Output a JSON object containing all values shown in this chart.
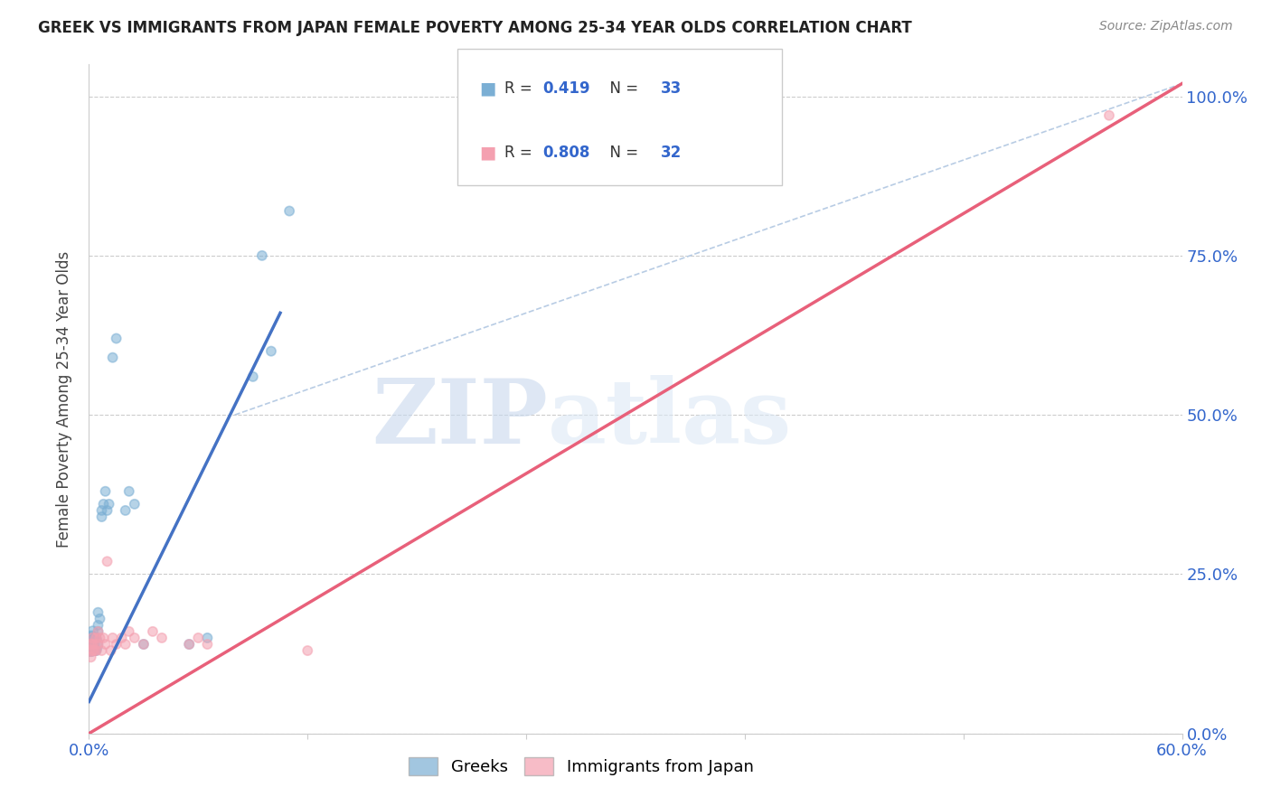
{
  "title": "GREEK VS IMMIGRANTS FROM JAPAN FEMALE POVERTY AMONG 25-34 YEAR OLDS CORRELATION CHART",
  "source": "Source: ZipAtlas.com",
  "ylabel": "Female Poverty Among 25-34 Year Olds",
  "xlim": [
    0.0,
    0.6
  ],
  "ylim": [
    0.0,
    1.05
  ],
  "yticks": [
    0.0,
    0.25,
    0.5,
    0.75,
    1.0
  ],
  "ytick_labels": [
    "0.0%",
    "25.0%",
    "50.0%",
    "75.0%",
    "100.0%"
  ],
  "xticks": [
    0.0,
    0.12,
    0.24,
    0.36,
    0.48,
    0.6
  ],
  "xtick_labels": [
    "0.0%",
    "",
    "",
    "",
    "",
    "60.0%"
  ],
  "greek_color": "#7bafd4",
  "japan_color": "#f4a0b0",
  "greek_line_color": "#4472c4",
  "japan_line_color": "#e8607a",
  "diag_color": "#b8cce4",
  "greek_R": 0.419,
  "greek_N": 33,
  "japan_R": 0.808,
  "japan_N": 32,
  "watermark_zip": "ZIP",
  "watermark_atlas": "atlas",
  "greek_x": [
    0.001,
    0.001,
    0.001,
    0.002,
    0.002,
    0.002,
    0.003,
    0.003,
    0.003,
    0.004,
    0.004,
    0.005,
    0.005,
    0.005,
    0.006,
    0.007,
    0.007,
    0.008,
    0.009,
    0.01,
    0.011,
    0.013,
    0.015,
    0.02,
    0.022,
    0.025,
    0.03,
    0.055,
    0.065,
    0.09,
    0.095,
    0.1,
    0.11
  ],
  "greek_y": [
    0.14,
    0.15,
    0.13,
    0.16,
    0.14,
    0.14,
    0.15,
    0.13,
    0.14,
    0.15,
    0.13,
    0.17,
    0.19,
    0.16,
    0.18,
    0.35,
    0.34,
    0.36,
    0.38,
    0.35,
    0.36,
    0.59,
    0.62,
    0.35,
    0.38,
    0.36,
    0.14,
    0.14,
    0.15,
    0.56,
    0.75,
    0.6,
    0.82
  ],
  "greek_sizes": [
    350,
    120,
    80,
    70,
    60,
    55,
    60,
    55,
    55,
    55,
    55,
    55,
    55,
    55,
    55,
    55,
    55,
    55,
    55,
    55,
    55,
    55,
    55,
    55,
    55,
    55,
    55,
    55,
    55,
    55,
    55,
    55,
    55
  ],
  "japan_x": [
    0.001,
    0.001,
    0.001,
    0.002,
    0.002,
    0.002,
    0.003,
    0.003,
    0.004,
    0.004,
    0.005,
    0.005,
    0.006,
    0.007,
    0.008,
    0.009,
    0.01,
    0.012,
    0.013,
    0.015,
    0.018,
    0.02,
    0.022,
    0.025,
    0.03,
    0.035,
    0.04,
    0.055,
    0.06,
    0.065,
    0.12,
    0.56
  ],
  "japan_y": [
    0.13,
    0.14,
    0.12,
    0.15,
    0.13,
    0.14,
    0.13,
    0.14,
    0.15,
    0.13,
    0.16,
    0.14,
    0.15,
    0.13,
    0.15,
    0.14,
    0.27,
    0.13,
    0.15,
    0.14,
    0.15,
    0.14,
    0.16,
    0.15,
    0.14,
    0.16,
    0.15,
    0.14,
    0.15,
    0.14,
    0.13,
    0.97
  ],
  "japan_sizes": [
    80,
    70,
    60,
    60,
    55,
    55,
    55,
    55,
    55,
    55,
    55,
    55,
    55,
    55,
    55,
    55,
    55,
    55,
    55,
    55,
    55,
    55,
    55,
    55,
    55,
    55,
    55,
    55,
    55,
    55,
    55,
    55
  ]
}
